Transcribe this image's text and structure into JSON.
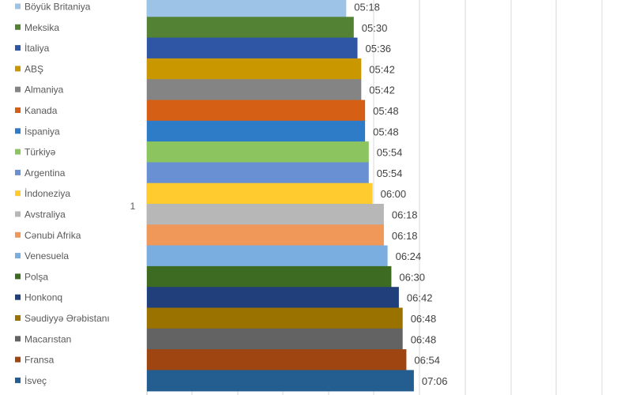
{
  "chart_data": {
    "type": "bar",
    "orientation": "horizontal",
    "category_axis_label": "1",
    "grid": true,
    "legend_placement": "left",
    "series": [
      {
        "name": "Böyük Britaniya",
        "label": "05:18",
        "minutes": 318,
        "color": "#9dc3e6"
      },
      {
        "name": "Meksika",
        "label": "05:30",
        "minutes": 330,
        "color": "#548235"
      },
      {
        "name": "İtaliya",
        "label": "05:36",
        "minutes": 336,
        "color": "#2f55a5"
      },
      {
        "name": "ABŞ",
        "label": "05:42",
        "minutes": 342,
        "color": "#c99800"
      },
      {
        "name": "Almaniya",
        "label": "05:42",
        "minutes": 342,
        "color": "#848484"
      },
      {
        "name": "Kanada",
        "label": "05:48",
        "minutes": 348,
        "color": "#d55f14"
      },
      {
        "name": "İspaniya",
        "label": "05:48",
        "minutes": 348,
        "color": "#2e7cc8"
      },
      {
        "name": "Türkiyə",
        "label": "05:54",
        "minutes": 354,
        "color": "#8cc560"
      },
      {
        "name": "Argentina",
        "label": "05:54",
        "minutes": 354,
        "color": "#6a90d4"
      },
      {
        "name": "İndoneziya",
        "label": "06:00",
        "minutes": 360,
        "color": "#ffcb2f"
      },
      {
        "name": "Avstraliya",
        "label": "06:18",
        "minutes": 378,
        "color": "#b7b7b7"
      },
      {
        "name": "Cənubi Afrika",
        "label": "06:18",
        "minutes": 378,
        "color": "#f0975a"
      },
      {
        "name": "Venesuela",
        "label": "06:24",
        "minutes": 384,
        "color": "#7aaee0"
      },
      {
        "name": "Polşa",
        "label": "06:30",
        "minutes": 390,
        "color": "#3e6b22"
      },
      {
        "name": "Honkonq",
        "label": "06:42",
        "minutes": 402,
        "color": "#213f7a"
      },
      {
        "name": "Səudiyyə Ərəbistanı",
        "label": "06:48",
        "minutes": 408,
        "color": "#997200"
      },
      {
        "name": "Macarıstan",
        "label": "06:48",
        "minutes": 408,
        "color": "#636363"
      },
      {
        "name": "Fransa",
        "label": "06:54",
        "minutes": 414,
        "color": "#9f4511"
      },
      {
        "name": "İsveç",
        "label": "07:06",
        "minutes": 426,
        "color": "#245e90"
      }
    ]
  }
}
